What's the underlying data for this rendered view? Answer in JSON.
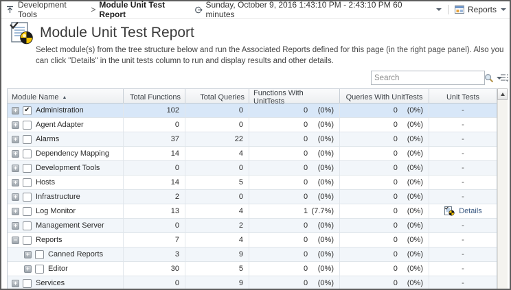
{
  "topbar": {
    "breadcrumb": {
      "parent": "Development Tools",
      "separator": ">",
      "current": "Module Unit Test Report"
    },
    "schedule": {
      "text": "Sunday, October 9, 2016 1:43:10 PM - 2:43:10 PM 60 minutes"
    },
    "reports": {
      "label": "Reports"
    }
  },
  "header": {
    "title": "Module Unit Test Report",
    "description": "Select module(s) from the tree structure below and run the Associated Reports defined for this page (in the right page panel). Also you can click \"Details\" in the unit tests column to run and display results and other details."
  },
  "search": {
    "placeholder": "Search"
  },
  "table": {
    "columns": [
      "Module Name",
      "Total Functions",
      "Total Queries",
      "Functions With UnitTests",
      "Queries With UnitTests",
      "Unit Tests"
    ],
    "sort_column": "Module Name",
    "sort_direction": "ascending",
    "sort_asc_glyph": "▲",
    "check_glyph": "✔",
    "expand_plus_glyph": "+",
    "expand_minus_glyph": "−",
    "empty_marker": "-",
    "details_label": "Details",
    "rows": [
      {
        "name": "Administration",
        "level": 0,
        "expand": "plus",
        "checked": true,
        "selected": true,
        "total_functions": "102",
        "total_queries": "0",
        "fwu_count": "0",
        "fwu_pct": "(0%)",
        "qwu_count": "0",
        "qwu_pct": "(0%)",
        "unit_tests": "-"
      },
      {
        "name": "Agent Adapter",
        "level": 0,
        "expand": "plus",
        "checked": false,
        "selected": false,
        "total_functions": "0",
        "total_queries": "0",
        "fwu_count": "0",
        "fwu_pct": "(0%)",
        "qwu_count": "0",
        "qwu_pct": "(0%)",
        "unit_tests": "-"
      },
      {
        "name": "Alarms",
        "level": 0,
        "expand": "plus",
        "checked": false,
        "selected": false,
        "total_functions": "37",
        "total_queries": "22",
        "fwu_count": "0",
        "fwu_pct": "(0%)",
        "qwu_count": "0",
        "qwu_pct": "(0%)",
        "unit_tests": "-"
      },
      {
        "name": "Dependency Mapping",
        "level": 0,
        "expand": "plus",
        "checked": false,
        "selected": false,
        "total_functions": "14",
        "total_queries": "4",
        "fwu_count": "0",
        "fwu_pct": "(0%)",
        "qwu_count": "0",
        "qwu_pct": "(0%)",
        "unit_tests": "-"
      },
      {
        "name": "Development Tools",
        "level": 0,
        "expand": "plus",
        "checked": false,
        "selected": false,
        "total_functions": "0",
        "total_queries": "0",
        "fwu_count": "0",
        "fwu_pct": "(0%)",
        "qwu_count": "0",
        "qwu_pct": "(0%)",
        "unit_tests": "-"
      },
      {
        "name": "Hosts",
        "level": 0,
        "expand": "plus",
        "checked": false,
        "selected": false,
        "total_functions": "14",
        "total_queries": "5",
        "fwu_count": "0",
        "fwu_pct": "(0%)",
        "qwu_count": "0",
        "qwu_pct": "(0%)",
        "unit_tests": "-"
      },
      {
        "name": "Infrastructure",
        "level": 0,
        "expand": "plus",
        "checked": false,
        "selected": false,
        "total_functions": "2",
        "total_queries": "0",
        "fwu_count": "0",
        "fwu_pct": "(0%)",
        "qwu_count": "0",
        "qwu_pct": "(0%)",
        "unit_tests": "-"
      },
      {
        "name": "Log Monitor",
        "level": 0,
        "expand": "plus",
        "checked": false,
        "selected": false,
        "total_functions": "13",
        "total_queries": "4",
        "fwu_count": "1",
        "fwu_pct": "(7.7%)",
        "qwu_count": "0",
        "qwu_pct": "(0%)",
        "unit_tests": "details"
      },
      {
        "name": "Management Server",
        "level": 0,
        "expand": "plus",
        "checked": false,
        "selected": false,
        "total_functions": "0",
        "total_queries": "2",
        "fwu_count": "0",
        "fwu_pct": "(0%)",
        "qwu_count": "0",
        "qwu_pct": "(0%)",
        "unit_tests": "-"
      },
      {
        "name": "Reports",
        "level": 0,
        "expand": "minus",
        "checked": false,
        "selected": false,
        "total_functions": "7",
        "total_queries": "4",
        "fwu_count": "0",
        "fwu_pct": "(0%)",
        "qwu_count": "0",
        "qwu_pct": "(0%)",
        "unit_tests": "-"
      },
      {
        "name": "Canned Reports",
        "level": 1,
        "expand": "plus",
        "checked": false,
        "selected": false,
        "total_functions": "3",
        "total_queries": "9",
        "fwu_count": "0",
        "fwu_pct": "(0%)",
        "qwu_count": "0",
        "qwu_pct": "(0%)",
        "unit_tests": "-"
      },
      {
        "name": "Editor",
        "level": 1,
        "expand": "plus",
        "checked": false,
        "selected": false,
        "total_functions": "30",
        "total_queries": "5",
        "fwu_count": "0",
        "fwu_pct": "(0%)",
        "qwu_count": "0",
        "qwu_pct": "(0%)",
        "unit_tests": "-"
      },
      {
        "name": "Services",
        "level": 0,
        "expand": "plus",
        "checked": false,
        "selected": false,
        "total_functions": "0",
        "total_queries": "9",
        "fwu_count": "0",
        "fwu_pct": "(0%)",
        "qwu_count": "0",
        "qwu_pct": "(0%)",
        "unit_tests": "-"
      }
    ]
  },
  "colors": {
    "selected_row": "#d8e7f8",
    "alt_row": "#f2f6fa",
    "pie_yellow": "#f5c400",
    "pie_black": "#1a1a1a",
    "window_border": "#5d5d5d"
  }
}
